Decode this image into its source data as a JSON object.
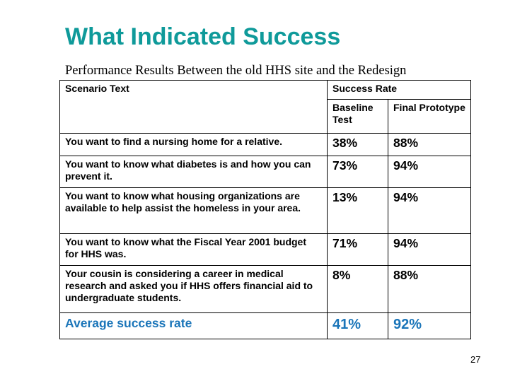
{
  "title": "What Indicated Success",
  "subtitle": "Performance Results Between the old HHS site and the Redesign",
  "table": {
    "scenario_header": "Scenario Text",
    "success_header": "Success Rate",
    "baseline_header": "Baseline Test",
    "final_header": "Final Prototype",
    "rows": [
      {
        "scenario": "You want to find a nursing home for a relative.",
        "baseline": "38%",
        "final": "88%"
      },
      {
        "scenario": "You want to know what diabetes is and how you can prevent it.",
        "baseline": "73%",
        "final": "94%"
      },
      {
        "scenario": "You want to know what housing organizations are available to help assist the homeless in your area.",
        "baseline": "13%",
        "final": "94%"
      },
      {
        "scenario": "You want to know what the Fiscal Year 2001 budget for HHS was.",
        "baseline": "71%",
        "final": "94%"
      },
      {
        "scenario": "Your cousin is considering a career in medical research and asked you if HHS offers financial aid to undergraduate students.",
        "baseline": "8%",
        "final": "88%"
      }
    ],
    "average_label": "Average success rate",
    "average_baseline": "41%",
    "average_final": "92%"
  },
  "page_number": "27",
  "colors": {
    "title": "#0f9a9a",
    "average": "#1a75b9"
  }
}
